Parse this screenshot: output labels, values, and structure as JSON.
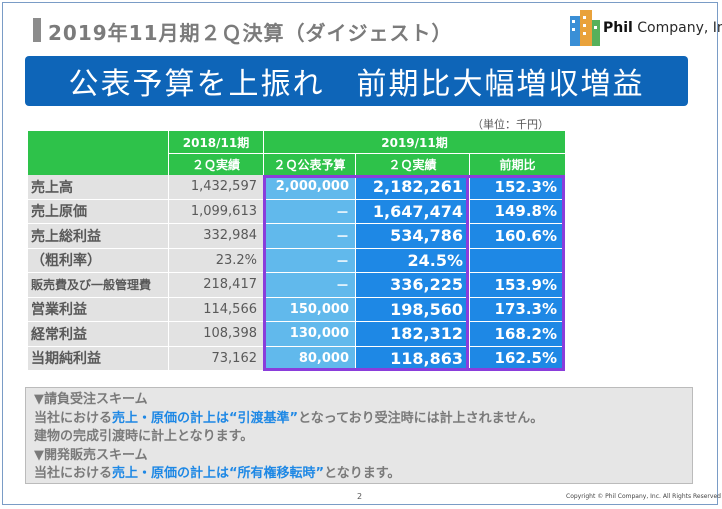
{
  "header": {
    "title": "2019年11月期２Ｑ決算（ダイジェスト）",
    "logo_text_bold": "Phil",
    "logo_text_rest": " Company, Inc."
  },
  "banner": {
    "text": "公表予算を上振れ　前期比大幅増収増益"
  },
  "unit_label": "（単位：千円）",
  "table": {
    "period_prev": "2018/11期",
    "period_cur": "2019/11期",
    "col_prev_result": "２Ｑ実績",
    "col_plan": "２Ｑ公表予算",
    "col_result": "２Ｑ実績",
    "col_yoy": "前期比",
    "rows": [
      {
        "label": "売上高",
        "prev": "1,432,597",
        "plan": "2,000,000",
        "actual": "2,182,261",
        "yoy": "152.3%"
      },
      {
        "label": "売上原価",
        "prev": "1,099,613",
        "plan": "－",
        "actual": "1,647,474",
        "yoy": "149.8%"
      },
      {
        "label": "売上総利益",
        "prev": "332,984",
        "plan": "－",
        "actual": "534,786",
        "yoy": "160.6%"
      },
      {
        "label": "（粗利率）",
        "prev": "23.2%",
        "plan": "－",
        "actual": "24.5%",
        "yoy": ""
      },
      {
        "label": "販売費及び一般管理費",
        "prev": "218,417",
        "plan": "－",
        "actual": "336,225",
        "yoy": "153.9%"
      },
      {
        "label": "営業利益",
        "prev": "114,566",
        "plan": "150,000",
        "actual": "198,560",
        "yoy": "173.3%"
      },
      {
        "label": "経常利益",
        "prev": "108,398",
        "plan": "130,000",
        "actual": "182,312",
        "yoy": "168.2%"
      },
      {
        "label": "当期純利益",
        "prev": "73,162",
        "plan": "80,000",
        "actual": "118,863",
        "yoy": "162.5%"
      }
    ]
  },
  "notes": {
    "h1": "▼請負受注スキーム",
    "l1_pre": "当社における",
    "l1_hl": "売上・原価の計上は“引渡基準”",
    "l1_post": "となっており受注時には計上されません。",
    "l2": "建物の完成引渡時に計上となります。",
    "h2": "▼開発販売スキーム",
    "l3_pre": "当社における",
    "l3_hl": "売上・原価の計上は“所有権移転時”",
    "l3_post": "となります。"
  },
  "footer": {
    "page": "2",
    "copyright": "Copyright © Phil Company, Inc.  All Rights Reserved"
  }
}
